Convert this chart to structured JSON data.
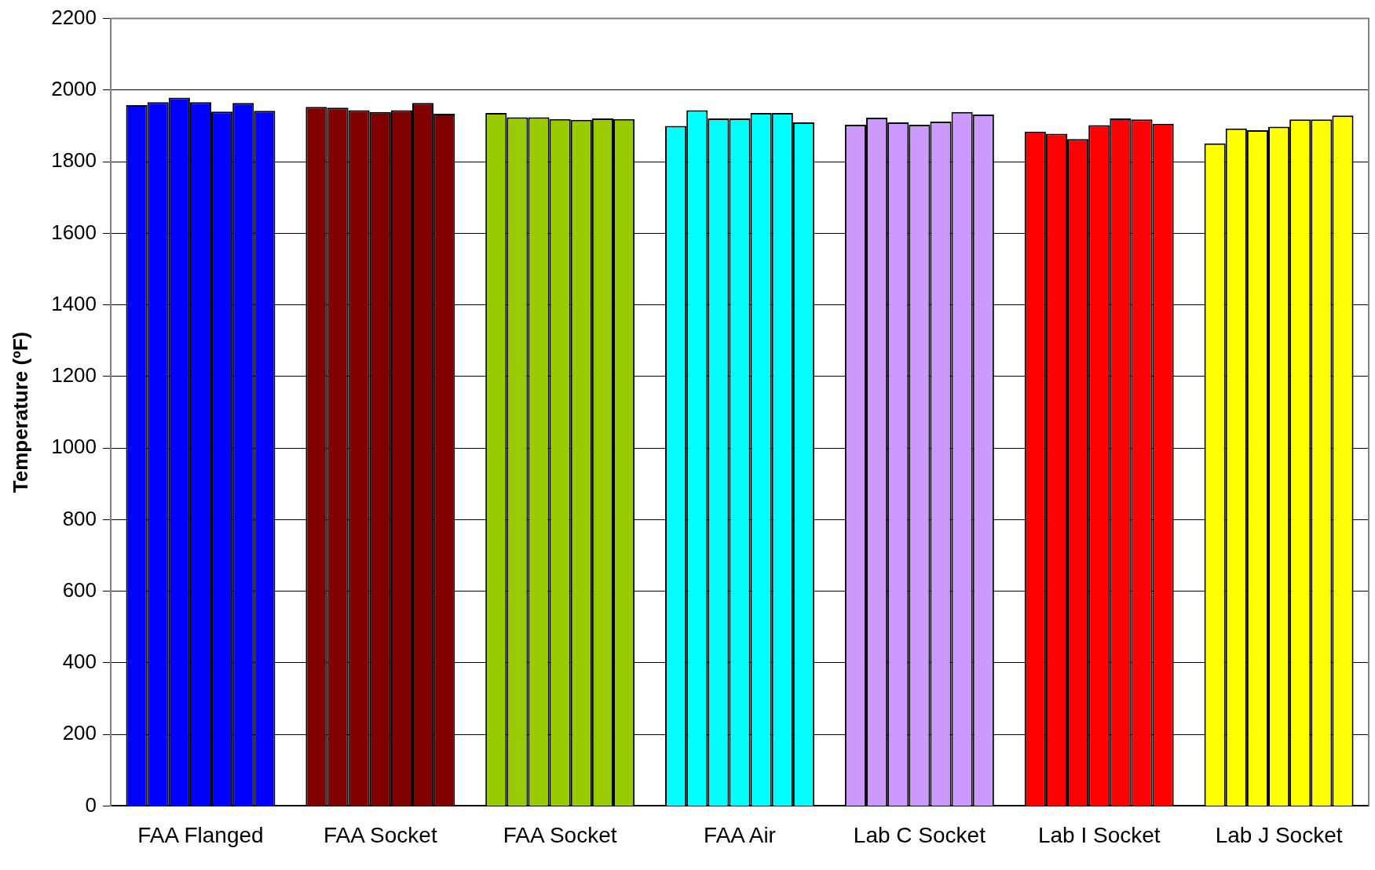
{
  "chart_data": {
    "type": "bar",
    "ylabel": "Temperature (ºF)",
    "categories": [
      "FAA Flanged",
      "FAA Socket",
      "FAA Socket",
      "FAA Air",
      "Lab C Socket",
      "Lab I Socket",
      "Lab J Socket"
    ],
    "series": [
      {
        "colors": [
          "#0000ff",
          "#800000",
          "#99cc00",
          "#00ffff",
          "#cc99ff",
          "#ff0000",
          "#ffff00"
        ],
        "values": [
          1958,
          1953,
          1936,
          1900,
          1903,
          1884,
          1851
        ]
      },
      {
        "colors": [
          "#0000ff",
          "#800000",
          "#99cc00",
          "#00ffff",
          "#cc99ff",
          "#ff0000",
          "#ffff00"
        ],
        "values": [
          1966,
          1951,
          1924,
          1944,
          1923,
          1878,
          1893
        ]
      },
      {
        "colors": [
          "#0000ff",
          "#800000",
          "#99cc00",
          "#00ffff",
          "#cc99ff",
          "#ff0000",
          "#ffff00"
        ],
        "values": [
          1979,
          1944,
          1924,
          1921,
          1910,
          1863,
          1888
        ]
      },
      {
        "colors": [
          "#0000ff",
          "#800000",
          "#99cc00",
          "#00ffff",
          "#cc99ff",
          "#ff0000",
          "#ffff00"
        ],
        "values": [
          1966,
          1939,
          1919,
          1921,
          1903,
          1902,
          1898
        ]
      },
      {
        "colors": [
          "#0000ff",
          "#800000",
          "#99cc00",
          "#00ffff",
          "#cc99ff",
          "#ff0000",
          "#ffff00"
        ],
        "values": [
          1940,
          1944,
          1917,
          1936,
          1912,
          1921,
          1918
        ]
      },
      {
        "colors": [
          "#0000ff",
          "#800000",
          "#99cc00",
          "#00ffff",
          "#cc99ff",
          "#ff0000",
          "#ffff00"
        ],
        "values": [
          1964,
          1964,
          1921,
          1936,
          1939,
          1918,
          1918
        ]
      },
      {
        "colors": [
          "#0000ff",
          "#800000",
          "#99cc00",
          "#00ffff",
          "#cc99ff",
          "#ff0000",
          "#ffff00"
        ],
        "values": [
          1942,
          1934,
          1919,
          1910,
          1932,
          1906,
          1929
        ]
      }
    ],
    "ylim": [
      0,
      2200
    ],
    "yticks": [
      0,
      200,
      400,
      600,
      800,
      1000,
      1200,
      1400,
      1600,
      1800,
      2000,
      2200
    ],
    "grid": "y",
    "legend": false
  }
}
